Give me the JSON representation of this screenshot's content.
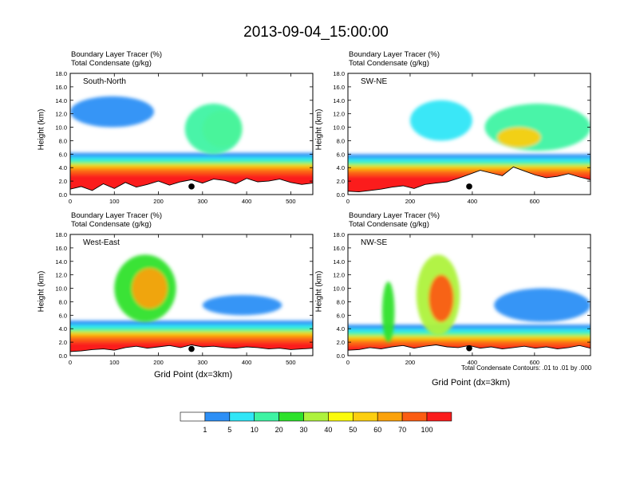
{
  "figure": {
    "title": "2013-09-04_15:00:00",
    "colorbar": {
      "colors": [
        "#ffffff",
        "#2d8ff5",
        "#30e6f7",
        "#3ef3a3",
        "#2ee22c",
        "#aef23d",
        "#fbfb0d",
        "#fccf10",
        "#fba20b",
        "#fb5d13",
        "#fb1d1d"
      ],
      "labels": [
        "1",
        "5",
        "10",
        "20",
        "30",
        "40",
        "50",
        "60",
        "70",
        "100"
      ]
    },
    "contour_note": "Total Condensate Contours: .01 to .01 by .000"
  },
  "chart_data": [
    {
      "type": "heatmap",
      "panel_label": "South-North",
      "title_line1": "Boundary Layer Tracer   (%)",
      "title_line2": "Total Condensate   (g/kg)",
      "ylabel": "Height (km)",
      "xlabel": "",
      "ylim": [
        0,
        18
      ],
      "yticks": [
        "0.0",
        "2.0",
        "4.0",
        "6.0",
        "8.0",
        "10.0",
        "12.0",
        "14.0",
        "16.0",
        "18.0"
      ],
      "xlim": [
        0,
        550
      ],
      "xticks": [
        "0",
        "100",
        "200",
        "300",
        "400",
        "500"
      ],
      "xtick_values": [
        0,
        100,
        200,
        300,
        400,
        500
      ],
      "marker": {
        "x": 275,
        "y": 1.2
      },
      "boundary_layer_top_km": 6.2,
      "terrain_km": [
        0.8,
        1.2,
        0.6,
        1.6,
        0.9,
        1.8,
        1.1,
        1.5,
        2.0,
        1.4,
        1.9,
        2.2,
        1.7,
        2.3,
        2.1,
        1.6,
        2.4,
        1.9,
        2.0,
        2.3,
        1.8,
        1.5,
        1.7
      ],
      "upper_clouds": [
        {
          "x": 0,
          "w": 190,
          "y": 10,
          "h": 4.6,
          "level": 1
        },
        {
          "x": 300,
          "w": 90,
          "y": 7,
          "h": 5.5,
          "level": 6
        },
        {
          "x": 260,
          "w": 130,
          "y": 6,
          "h": 7.5,
          "level": 3
        }
      ]
    },
    {
      "type": "heatmap",
      "panel_label": "SW-NE",
      "title_line1": "Boundary Layer Tracer   (%)",
      "title_line2": "Total Condensate   (g/kg)",
      "ylabel": "Height (km)",
      "xlabel": "",
      "ylim": [
        0,
        18
      ],
      "yticks": [
        "0.0",
        "2.0",
        "4.0",
        "6.0",
        "8.0",
        "10.0",
        "12.0",
        "14.0",
        "16.0",
        "18.0"
      ],
      "xlim": [
        0,
        780
      ],
      "xticks": [
        "0",
        "200",
        "400",
        "600"
      ],
      "xtick_values": [
        0,
        200,
        400,
        600
      ],
      "marker": {
        "x": 390,
        "y": 1.2
      },
      "boundary_layer_top_km": 6.0,
      "terrain_km": [
        0.5,
        0.4,
        0.6,
        0.8,
        1.1,
        1.3,
        0.9,
        1.5,
        1.7,
        1.9,
        2.4,
        3.0,
        3.6,
        3.2,
        2.8,
        4.1,
        3.5,
        2.9,
        2.5,
        2.7,
        3.1,
        2.6,
        2.2
      ],
      "upper_clouds": [
        {
          "x": 200,
          "w": 200,
          "y": 8,
          "h": 6,
          "level": 2
        },
        {
          "x": 440,
          "w": 340,
          "y": 6.5,
          "h": 7,
          "level": 3
        },
        {
          "x": 480,
          "w": 140,
          "y": 7,
          "h": 3,
          "level": 7
        }
      ]
    },
    {
      "type": "heatmap",
      "panel_label": "West-East",
      "title_line1": "Boundary Layer Tracer   (%)",
      "title_line2": "Total Condensate   (g/kg)",
      "ylabel": "Height (km)",
      "xlabel": "Grid Point (dx=3km)",
      "ylim": [
        0,
        18
      ],
      "yticks": [
        "0.0",
        "2.0",
        "4.0",
        "6.0",
        "8.0",
        "10.0",
        "12.0",
        "14.0",
        "16.0",
        "18.0"
      ],
      "xlim": [
        0,
        550
      ],
      "xticks": [
        "0",
        "100",
        "200",
        "300",
        "400",
        "500"
      ],
      "xtick_values": [
        0,
        100,
        200,
        300,
        400,
        500
      ],
      "marker": {
        "x": 275,
        "y": 1.0
      },
      "boundary_layer_top_km": 5.2,
      "terrain_km": [
        0.6,
        0.7,
        0.9,
        1.0,
        0.8,
        1.2,
        1.4,
        1.1,
        1.3,
        1.5,
        1.2,
        1.6,
        1.3,
        1.4,
        1.2,
        1.1,
        1.3,
        1.2,
        1.0,
        1.1,
        0.9,
        1.0,
        1.1
      ],
      "upper_clouds": [
        {
          "x": 100,
          "w": 140,
          "y": 5,
          "h": 10,
          "level": 4
        },
        {
          "x": 140,
          "w": 80,
          "y": 7,
          "h": 6,
          "level": 8
        },
        {
          "x": 300,
          "w": 180,
          "y": 6,
          "h": 3,
          "level": 1
        }
      ]
    },
    {
      "type": "heatmap",
      "panel_label": "NW-SE",
      "title_line1": "Boundary Layer Tracer   (%)",
      "title_line2": "Total Condensate   (g/kg)",
      "ylabel": "Height (km)",
      "xlabel": "Grid Point (dx=3km)",
      "ylim": [
        0,
        18
      ],
      "yticks": [
        "0.0",
        "2.0",
        "4.0",
        "6.0",
        "8.0",
        "10.0",
        "12.0",
        "14.0",
        "16.0",
        "18.0"
      ],
      "xlim": [
        0,
        780
      ],
      "xticks": [
        "0",
        "200",
        "400",
        "600"
      ],
      "xtick_values": [
        0,
        200,
        400,
        600
      ],
      "marker": {
        "x": 390,
        "y": 1.1
      },
      "boundary_layer_top_km": 4.6,
      "terrain_km": [
        0.8,
        0.9,
        1.2,
        1.0,
        1.3,
        1.5,
        1.1,
        1.4,
        1.6,
        1.3,
        1.2,
        1.5,
        1.1,
        1.3,
        1.0,
        1.2,
        1.4,
        1.1,
        1.3,
        1.0,
        1.2,
        1.5,
        1.1
      ],
      "upper_clouds": [
        {
          "x": 110,
          "w": 40,
          "y": 2,
          "h": 9,
          "level": 4
        },
        {
          "x": 220,
          "w": 140,
          "y": 3,
          "h": 12,
          "level": 5
        },
        {
          "x": 260,
          "w": 80,
          "y": 5,
          "h": 7,
          "level": 9
        },
        {
          "x": 470,
          "w": 310,
          "y": 5,
          "h": 5,
          "level": 1
        }
      ]
    }
  ]
}
